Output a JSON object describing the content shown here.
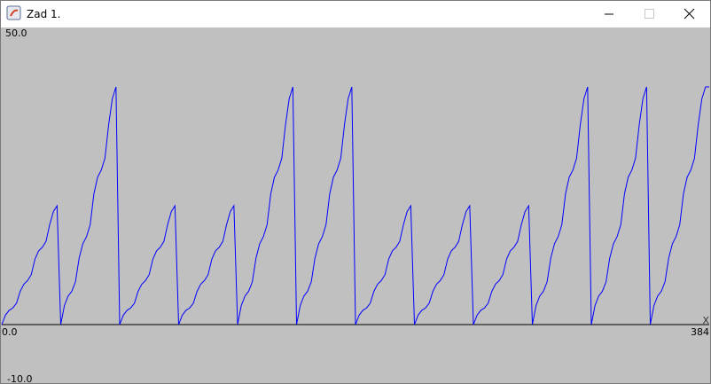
{
  "window": {
    "title": "Zad 1."
  },
  "chart_data": {
    "type": "line",
    "x_label": "X",
    "x": [
      0,
      2,
      4,
      6,
      8,
      10,
      12,
      14,
      16,
      18,
      20,
      22,
      24,
      26,
      28,
      30,
      32,
      34,
      36,
      38,
      40,
      42,
      44,
      46,
      48,
      50,
      52,
      54,
      56,
      58,
      60,
      62,
      64,
      66,
      68,
      70,
      72,
      74,
      76,
      78,
      80,
      82,
      84,
      86,
      88,
      90,
      92,
      94,
      96,
      98,
      100,
      102,
      104,
      106,
      108,
      110,
      112,
      114,
      116,
      118,
      120,
      122,
      124,
      126,
      128,
      130,
      132,
      134,
      136,
      138,
      140,
      142,
      144,
      146,
      148,
      150,
      152,
      154,
      156,
      158,
      160,
      162,
      164,
      166,
      168,
      170,
      172,
      174,
      176,
      178,
      180,
      182,
      184,
      186,
      188,
      190,
      192,
      194,
      196,
      198,
      200,
      202,
      204,
      206,
      208,
      210,
      212,
      214,
      216,
      218,
      220,
      222,
      224,
      226,
      228,
      230,
      232,
      234,
      236,
      238,
      240,
      242,
      244,
      246,
      248,
      250,
      252,
      254,
      256,
      258,
      260,
      262,
      264,
      266,
      268,
      270,
      272,
      274,
      276,
      278,
      280,
      282,
      284,
      286,
      288,
      290,
      292,
      294,
      296,
      298,
      300,
      302,
      304,
      306,
      308,
      310,
      312,
      314,
      316,
      318,
      320,
      322,
      324,
      326,
      328,
      330,
      332,
      334,
      336,
      338,
      340,
      342,
      344,
      346,
      348,
      350,
      352,
      354,
      356,
      358,
      360,
      362,
      364,
      366,
      368,
      370,
      372,
      374,
      376,
      378,
      380,
      382,
      384
    ],
    "series": [
      {
        "color": "#0000ff",
        "values": [
          0,
          1.6,
          2.4,
          2.8,
          3.6,
          5.6,
          6.8,
          7.4,
          8.4,
          11,
          12.4,
          13,
          14,
          16.8,
          19,
          20,
          0,
          3.2,
          4.8,
          5.6,
          7.2,
          11.2,
          13.6,
          14.8,
          16.8,
          22,
          24.8,
          26,
          28,
          33.6,
          38,
          40,
          0,
          1.6,
          2.4,
          2.8,
          3.6,
          5.6,
          6.8,
          7.4,
          8.4,
          11,
          12.4,
          13,
          14,
          16.8,
          19,
          20,
          0,
          1.6,
          2.4,
          2.8,
          3.6,
          5.6,
          6.8,
          7.4,
          8.4,
          11,
          12.4,
          13,
          14,
          16.8,
          19,
          20,
          0,
          3.2,
          4.8,
          5.6,
          7.2,
          11.2,
          13.6,
          14.8,
          16.8,
          22,
          24.8,
          26,
          28,
          33.6,
          38,
          40,
          0,
          3.2,
          4.8,
          5.6,
          7.2,
          11.2,
          13.6,
          14.8,
          16.8,
          22,
          24.8,
          26,
          28,
          33.6,
          38,
          40,
          0,
          1.6,
          2.4,
          2.8,
          3.6,
          5.6,
          6.8,
          7.4,
          8.4,
          11,
          12.4,
          13,
          14,
          16.8,
          19,
          20,
          0,
          1.6,
          2.4,
          2.8,
          3.6,
          5.6,
          6.8,
          7.4,
          8.4,
          11,
          12.4,
          13,
          14,
          16.8,
          19,
          20,
          0,
          1.6,
          2.4,
          2.8,
          3.6,
          5.6,
          6.8,
          7.4,
          8.4,
          11,
          12.4,
          13,
          14,
          16.8,
          19,
          20,
          0,
          3.2,
          4.8,
          5.6,
          7.2,
          11.2,
          13.6,
          14.8,
          16.8,
          22,
          24.8,
          26,
          28,
          33.6,
          38,
          40,
          0,
          3.2,
          4.8,
          5.6,
          7.2,
          11.2,
          13.6,
          14.8,
          16.8,
          22,
          24.8,
          26,
          28,
          33.6,
          38,
          40,
          0,
          3.2,
          4.8,
          5.6,
          7.2,
          11.2,
          13.6,
          14.8,
          16.8,
          22,
          24.8,
          26,
          28,
          33.6,
          38,
          40,
          40
        ]
      }
    ],
    "xlim": [
      0,
      384
    ],
    "ylim": [
      -10,
      50
    ],
    "xticks": [
      {
        "value": 0,
        "label": "0.0"
      },
      384
    ],
    "yticks": [
      {
        "value": 50,
        "label": "50.0"
      },
      {
        "value": -10,
        "label": "-10.0"
      }
    ]
  }
}
